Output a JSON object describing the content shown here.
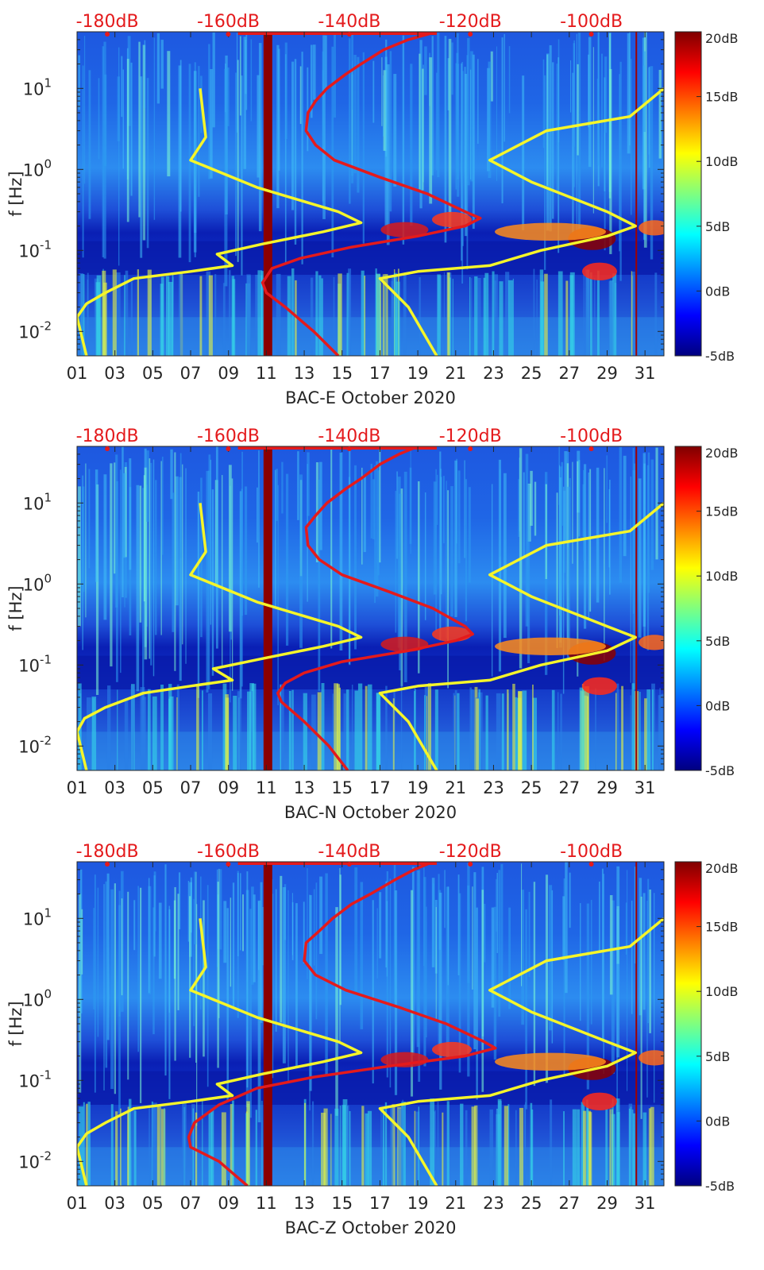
{
  "chart_data": [
    {
      "type": "heatmap",
      "name": "BAC-E",
      "xlabel": "BAC-E October 2020",
      "ylabel": "f [Hz]",
      "yscale": "log",
      "ylim": [
        0.005,
        50
      ],
      "xlim": [
        1,
        32
      ],
      "x_ticks": [
        "01",
        "03",
        "05",
        "07",
        "09",
        "11",
        "13",
        "15",
        "17",
        "19",
        "21",
        "23",
        "25",
        "27",
        "29",
        "31"
      ],
      "y_ticks": [
        {
          "base": "10",
          "exp": "-2"
        },
        {
          "base": "10",
          "exp": "-1"
        },
        {
          "base": "10",
          "exp": "0"
        },
        {
          "base": "10",
          "exp": "1"
        }
      ],
      "top_axis_ticks": [
        "-180dB",
        "-160dB",
        "-140dB",
        "-120dB",
        "-100dB"
      ],
      "top_axis_range": [
        -185,
        -88
      ],
      "colorbar": {
        "ticks": [
          "20dB",
          "15dB",
          "10dB",
          "5dB",
          "0dB",
          "-5dB"
        ],
        "range": [
          -5,
          20
        ]
      },
      "red_curve": [
        {
          "f": 50,
          "day": 20.0
        },
        {
          "f": 40,
          "day": 18.5
        },
        {
          "f": 30,
          "day": 17.2
        },
        {
          "f": 20,
          "day": 16.0
        },
        {
          "f": 15,
          "day": 15.2
        },
        {
          "f": 10,
          "day": 14.2
        },
        {
          "f": 7,
          "day": 13.6
        },
        {
          "f": 5,
          "day": 13.2
        },
        {
          "f": 3,
          "day": 13.1
        },
        {
          "f": 2,
          "day": 13.6
        },
        {
          "f": 1.3,
          "day": 14.6
        },
        {
          "f": 0.8,
          "day": 17.0
        },
        {
          "f": 0.5,
          "day": 19.5
        },
        {
          "f": 0.3,
          "day": 21.5
        },
        {
          "f": 0.25,
          "day": 22.3
        },
        {
          "f": 0.2,
          "day": 21.5
        },
        {
          "f": 0.15,
          "day": 19.0
        },
        {
          "f": 0.11,
          "day": 15.5
        },
        {
          "f": 0.08,
          "day": 12.8
        },
        {
          "f": 0.06,
          "day": 11.3
        },
        {
          "f": 0.04,
          "day": 10.8
        },
        {
          "f": 0.03,
          "day": 11.0
        },
        {
          "f": 0.02,
          "day": 12.0
        },
        {
          "f": 0.01,
          "day": 13.5
        },
        {
          "f": 0.005,
          "day": 14.8
        }
      ],
      "yellow_left": [
        {
          "f": 10,
          "day": 7.5
        },
        {
          "f": 2.5,
          "day": 7.8
        },
        {
          "f": 1.3,
          "day": 7.0
        },
        {
          "f": 0.6,
          "day": 10.5
        },
        {
          "f": 0.3,
          "day": 14.8
        },
        {
          "f": 0.22,
          "day": 16.0
        },
        {
          "f": 0.17,
          "day": 14.0
        },
        {
          "f": 0.12,
          "day": 10.8
        },
        {
          "f": 0.09,
          "day": 8.4
        },
        {
          "f": 0.065,
          "day": 9.2
        },
        {
          "f": 0.055,
          "day": 7.0
        },
        {
          "f": 0.045,
          "day": 4.0
        },
        {
          "f": 0.03,
          "day": 2.5
        },
        {
          "f": 0.022,
          "day": 1.5
        },
        {
          "f": 0.015,
          "day": 1.0
        },
        {
          "f": 0.005,
          "day": 1.5
        }
      ],
      "yellow_right": [
        {
          "f": 10,
          "day": 32.0
        },
        {
          "f": 4.5,
          "day": 30.2
        },
        {
          "f": 3,
          "day": 25.8
        },
        {
          "f": 1.3,
          "day": 22.8
        },
        {
          "f": 0.7,
          "day": 25.0
        },
        {
          "f": 0.3,
          "day": 29.0
        },
        {
          "f": 0.2,
          "day": 30.5
        },
        {
          "f": 0.15,
          "day": 29.0
        },
        {
          "f": 0.1,
          "day": 25.5
        },
        {
          "f": 0.065,
          "day": 22.8
        },
        {
          "f": 0.055,
          "day": 19.0
        },
        {
          "f": 0.045,
          "day": 17.0
        },
        {
          "f": 0.02,
          "day": 18.5
        },
        {
          "f": 0.005,
          "day": 20.0
        }
      ]
    },
    {
      "type": "heatmap",
      "name": "BAC-N",
      "xlabel": "BAC-N October 2020",
      "ylabel": "f [Hz]",
      "yscale": "log",
      "ylim": [
        0.005,
        50
      ],
      "xlim": [
        1,
        32
      ],
      "x_ticks": [
        "01",
        "03",
        "05",
        "07",
        "09",
        "11",
        "13",
        "15",
        "17",
        "19",
        "21",
        "23",
        "25",
        "27",
        "29",
        "31"
      ],
      "y_ticks": [
        {
          "base": "10",
          "exp": "-2"
        },
        {
          "base": "10",
          "exp": "-1"
        },
        {
          "base": "10",
          "exp": "0"
        },
        {
          "base": "10",
          "exp": "1"
        }
      ],
      "top_axis_ticks": [
        "-180dB",
        "-160dB",
        "-140dB",
        "-120dB",
        "-100dB"
      ],
      "top_axis_range": [
        -185,
        -88
      ],
      "colorbar": {
        "ticks": [
          "20dB",
          "15dB",
          "10dB",
          "5dB",
          "0dB",
          "-5dB"
        ],
        "range": [
          -5,
          20
        ]
      },
      "red_curve": [
        {
          "f": 50,
          "day": 19.0
        },
        {
          "f": 40,
          "day": 18.0
        },
        {
          "f": 30,
          "day": 17.0
        },
        {
          "f": 20,
          "day": 16.0
        },
        {
          "f": 15,
          "day": 15.2
        },
        {
          "f": 10,
          "day": 14.2
        },
        {
          "f": 7,
          "day": 13.6
        },
        {
          "f": 5,
          "day": 13.1
        },
        {
          "f": 3,
          "day": 13.2
        },
        {
          "f": 2,
          "day": 13.8
        },
        {
          "f": 1.3,
          "day": 15.0
        },
        {
          "f": 0.8,
          "day": 17.5
        },
        {
          "f": 0.5,
          "day": 19.8
        },
        {
          "f": 0.3,
          "day": 21.5
        },
        {
          "f": 0.24,
          "day": 21.9
        },
        {
          "f": 0.2,
          "day": 21.0
        },
        {
          "f": 0.15,
          "day": 18.5
        },
        {
          "f": 0.11,
          "day": 15.0
        },
        {
          "f": 0.08,
          "day": 13.0
        },
        {
          "f": 0.06,
          "day": 12.0
        },
        {
          "f": 0.045,
          "day": 11.6
        },
        {
          "f": 0.035,
          "day": 11.8
        },
        {
          "f": 0.02,
          "day": 13.0
        },
        {
          "f": 0.01,
          "day": 14.3
        },
        {
          "f": 0.005,
          "day": 15.3
        }
      ],
      "yellow_left": [
        {
          "f": 10,
          "day": 7.5
        },
        {
          "f": 2.5,
          "day": 7.8
        },
        {
          "f": 1.3,
          "day": 7.0
        },
        {
          "f": 0.6,
          "day": 10.5
        },
        {
          "f": 0.3,
          "day": 14.8
        },
        {
          "f": 0.22,
          "day": 16.0
        },
        {
          "f": 0.17,
          "day": 14.0
        },
        {
          "f": 0.12,
          "day": 10.8
        },
        {
          "f": 0.09,
          "day": 8.2
        },
        {
          "f": 0.065,
          "day": 9.2
        },
        {
          "f": 0.055,
          "day": 7.0
        },
        {
          "f": 0.045,
          "day": 4.5
        },
        {
          "f": 0.03,
          "day": 2.5
        },
        {
          "f": 0.022,
          "day": 1.4
        },
        {
          "f": 0.015,
          "day": 1.0
        },
        {
          "f": 0.005,
          "day": 1.5
        }
      ],
      "yellow_right": [
        {
          "f": 10,
          "day": 32.0
        },
        {
          "f": 4.5,
          "day": 30.2
        },
        {
          "f": 3,
          "day": 25.8
        },
        {
          "f": 1.3,
          "day": 22.8
        },
        {
          "f": 0.7,
          "day": 25.0
        },
        {
          "f": 0.3,
          "day": 29.0
        },
        {
          "f": 0.22,
          "day": 30.5
        },
        {
          "f": 0.15,
          "day": 29.0
        },
        {
          "f": 0.1,
          "day": 25.5
        },
        {
          "f": 0.065,
          "day": 22.8
        },
        {
          "f": 0.055,
          "day": 19.0
        },
        {
          "f": 0.045,
          "day": 17.0
        },
        {
          "f": 0.02,
          "day": 18.5
        },
        {
          "f": 0.005,
          "day": 20.0
        }
      ]
    },
    {
      "type": "heatmap",
      "name": "BAC-Z",
      "xlabel": "BAC-Z October 2020",
      "ylabel": "f [Hz]",
      "yscale": "log",
      "ylim": [
        0.005,
        50
      ],
      "xlim": [
        1,
        32
      ],
      "x_ticks": [
        "01",
        "03",
        "05",
        "07",
        "09",
        "11",
        "13",
        "15",
        "17",
        "19",
        "21",
        "23",
        "25",
        "27",
        "29",
        "31"
      ],
      "y_ticks": [
        {
          "base": "10",
          "exp": "-2"
        },
        {
          "base": "10",
          "exp": "-1"
        },
        {
          "base": "10",
          "exp": "0"
        },
        {
          "base": "10",
          "exp": "1"
        }
      ],
      "top_axis_ticks": [
        "-180dB",
        "-160dB",
        "-140dB",
        "-120dB",
        "-100dB"
      ],
      "top_axis_range": [
        -185,
        -88
      ],
      "colorbar": {
        "ticks": [
          "20dB",
          "15dB",
          "10dB",
          "5dB",
          "0dB",
          "-5dB"
        ],
        "range": [
          -5,
          20
        ]
      },
      "red_curve": [
        {
          "f": 50,
          "day": 19.8
        },
        {
          "f": 40,
          "day": 18.8
        },
        {
          "f": 30,
          "day": 17.8
        },
        {
          "f": 20,
          "day": 16.5
        },
        {
          "f": 15,
          "day": 15.5
        },
        {
          "f": 10,
          "day": 14.5
        },
        {
          "f": 7,
          "day": 13.8
        },
        {
          "f": 5,
          "day": 13.1
        },
        {
          "f": 3,
          "day": 13.0
        },
        {
          "f": 2,
          "day": 13.6
        },
        {
          "f": 1.3,
          "day": 15.2
        },
        {
          "f": 0.8,
          "day": 18.0
        },
        {
          "f": 0.5,
          "day": 20.5
        },
        {
          "f": 0.3,
          "day": 22.5
        },
        {
          "f": 0.25,
          "day": 23.1
        },
        {
          "f": 0.2,
          "day": 21.5
        },
        {
          "f": 0.15,
          "day": 17.5
        },
        {
          "f": 0.11,
          "day": 13.5
        },
        {
          "f": 0.08,
          "day": 10.5
        },
        {
          "f": 0.05,
          "day": 8.5
        },
        {
          "f": 0.03,
          "day": 7.2
        },
        {
          "f": 0.02,
          "day": 6.9
        },
        {
          "f": 0.015,
          "day": 7.0
        },
        {
          "f": 0.01,
          "day": 8.5
        },
        {
          "f": 0.005,
          "day": 10.0
        }
      ],
      "yellow_left": [
        {
          "f": 10,
          "day": 7.5
        },
        {
          "f": 2.5,
          "day": 7.8
        },
        {
          "f": 1.3,
          "day": 7.0
        },
        {
          "f": 0.6,
          "day": 10.5
        },
        {
          "f": 0.3,
          "day": 14.8
        },
        {
          "f": 0.22,
          "day": 16.0
        },
        {
          "f": 0.17,
          "day": 14.0
        },
        {
          "f": 0.12,
          "day": 10.8
        },
        {
          "f": 0.09,
          "day": 8.4
        },
        {
          "f": 0.065,
          "day": 9.2
        },
        {
          "f": 0.055,
          "day": 7.0
        },
        {
          "f": 0.045,
          "day": 4.0
        },
        {
          "f": 0.03,
          "day": 2.5
        },
        {
          "f": 0.022,
          "day": 1.5
        },
        {
          "f": 0.015,
          "day": 1.0
        },
        {
          "f": 0.005,
          "day": 1.5
        }
      ],
      "yellow_right": [
        {
          "f": 10,
          "day": 32.0
        },
        {
          "f": 4.5,
          "day": 30.2
        },
        {
          "f": 3,
          "day": 25.8
        },
        {
          "f": 1.3,
          "day": 22.8
        },
        {
          "f": 0.7,
          "day": 25.0
        },
        {
          "f": 0.3,
          "day": 29.0
        },
        {
          "f": 0.22,
          "day": 30.5
        },
        {
          "f": 0.15,
          "day": 29.0
        },
        {
          "f": 0.1,
          "day": 25.5
        },
        {
          "f": 0.065,
          "day": 22.8
        },
        {
          "f": 0.055,
          "day": 19.0
        },
        {
          "f": 0.045,
          "day": 17.0
        },
        {
          "f": 0.02,
          "day": 18.5
        },
        {
          "f": 0.005,
          "day": 20.0
        }
      ]
    }
  ],
  "colors": {
    "red_curve": "#e41a1c",
    "yellow_curve": "#f5f52a",
    "background_blue": "#1f3fd1",
    "band_dark": "#00007f",
    "vertical_band": "#8b0000",
    "top_label": "#e41a1c"
  }
}
